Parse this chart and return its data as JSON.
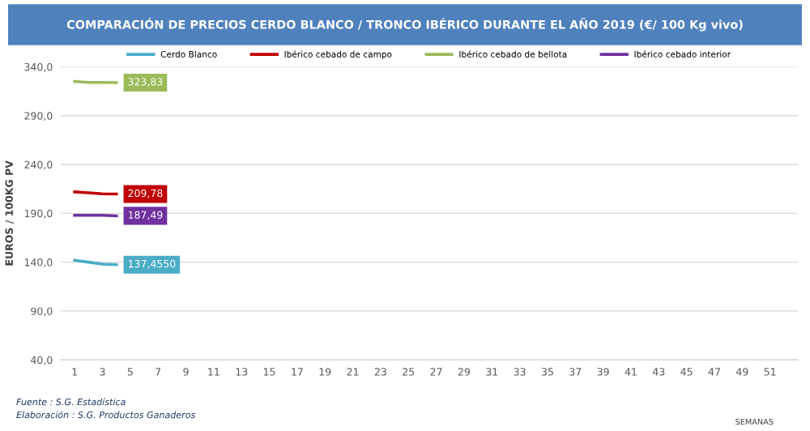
{
  "chart_data": {
    "type": "line",
    "title": "COMPARACIÓN DE PRECIOS CERDO BLANCO / TRONCO IBÉRICO DURANTE EL AÑO 2019 (€/ 100 Kg vivo)",
    "ylabel": "EUROS / 100KG PV",
    "x": [
      1,
      2,
      3,
      4
    ],
    "series": [
      {
        "name": "Cerdo Blanco",
        "color": "#4bacc6",
        "values": [
          142,
          140,
          138,
          137.455
        ],
        "value_labels": [
          null,
          null,
          null,
          "137,4550"
        ]
      },
      {
        "name": "Ibérico cebado de campo",
        "color": "#c00000",
        "values": [
          212,
          211,
          210,
          209.78
        ],
        "value_labels": [
          null,
          null,
          null,
          "209,78"
        ]
      },
      {
        "name": "Ibérico cebado de bellota",
        "color": "#9bbb59",
        "values": [
          325,
          324,
          324,
          323.83
        ],
        "value_labels": [
          null,
          null,
          null,
          "323,83"
        ]
      },
      {
        "name": "Ibérico cebado interior",
        "color": "#7030a0",
        "values": [
          188,
          188,
          188,
          187.49
        ],
        "value_labels": [
          null,
          null,
          null,
          "187,49"
        ]
      }
    ],
    "xlim": [
      0,
      53
    ],
    "xticks": [
      1,
      3,
      5,
      7,
      9,
      11,
      13,
      15,
      17,
      19,
      21,
      23,
      25,
      27,
      29,
      31,
      33,
      35,
      37,
      39,
      41,
      43,
      45,
      47,
      49,
      51
    ],
    "ylim": [
      40,
      340
    ],
    "yticks": [
      {
        "value": 40,
        "label": "40,0"
      },
      {
        "value": 90,
        "label": "90,0"
      },
      {
        "value": 140,
        "label": "140,0"
      },
      {
        "value": 190,
        "label": "190,0"
      },
      {
        "value": 240,
        "label": "240,0"
      },
      {
        "value": 290,
        "label": "290,0"
      },
      {
        "value": 340,
        "label": "340,0"
      }
    ],
    "grid": "y",
    "legend": "top",
    "marker": "none",
    "line_style": "solid",
    "annotations": [
      "Fuente : S.G. Estadística",
      "Elaboración : S.G. Productos Ganaderos",
      "SEMANAS"
    ]
  }
}
